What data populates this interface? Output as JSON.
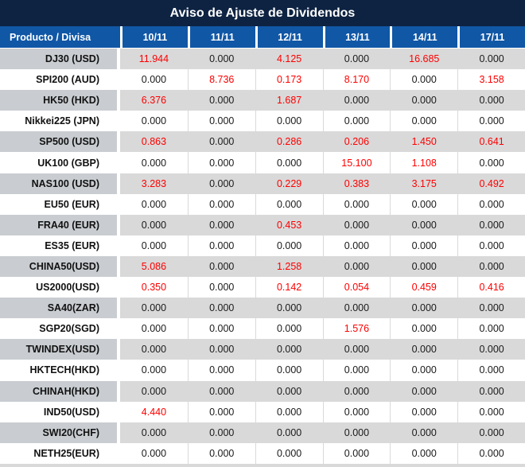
{
  "title": "Aviso de Ajuste de Dividendos",
  "colors": {
    "title_bg": "#0e2342",
    "header_bg": "#1057a6",
    "row_gray": "#d9d9d9",
    "product_gray": "#c9cdd1",
    "negative_value_red": "#fe0000",
    "value_black": "#1a1a1a"
  },
  "table": {
    "product_header": "Producto / Divisa",
    "date_headers": [
      "10/11",
      "11/11",
      "12/11",
      "13/11",
      "14/11",
      "17/11"
    ],
    "rows": [
      {
        "product": "DJ30 (USD)",
        "values": [
          "11.944",
          "0.000",
          "4.125",
          "0.000",
          "16.685",
          "0.000"
        ],
        "red": [
          true,
          false,
          true,
          false,
          true,
          false
        ]
      },
      {
        "product": "SPI200 (AUD)",
        "values": [
          "0.000",
          "8.736",
          "0.173",
          "8.170",
          "0.000",
          "3.158"
        ],
        "red": [
          false,
          true,
          true,
          true,
          false,
          true
        ]
      },
      {
        "product": "HK50 (HKD)",
        "values": [
          "6.376",
          "0.000",
          "1.687",
          "0.000",
          "0.000",
          "0.000"
        ],
        "red": [
          true,
          false,
          true,
          false,
          false,
          false
        ]
      },
      {
        "product": "Nikkei225 (JPN)",
        "values": [
          "0.000",
          "0.000",
          "0.000",
          "0.000",
          "0.000",
          "0.000"
        ],
        "red": [
          false,
          false,
          false,
          false,
          false,
          false
        ]
      },
      {
        "product": "SP500 (USD)",
        "values": [
          "0.863",
          "0.000",
          "0.286",
          "0.206",
          "1.450",
          "0.641"
        ],
        "red": [
          true,
          false,
          true,
          true,
          true,
          true
        ]
      },
      {
        "product": "UK100 (GBP)",
        "values": [
          "0.000",
          "0.000",
          "0.000",
          "15.100",
          "1.108",
          "0.000"
        ],
        "red": [
          false,
          false,
          false,
          true,
          true,
          false
        ]
      },
      {
        "product": "NAS100 (USD)",
        "values": [
          "3.283",
          "0.000",
          "0.229",
          "0.383",
          "3.175",
          "0.492"
        ],
        "red": [
          true,
          false,
          true,
          true,
          true,
          true
        ]
      },
      {
        "product": "EU50 (EUR)",
        "values": [
          "0.000",
          "0.000",
          "0.000",
          "0.000",
          "0.000",
          "0.000"
        ],
        "red": [
          false,
          false,
          false,
          false,
          false,
          false
        ]
      },
      {
        "product": "FRA40 (EUR)",
        "values": [
          "0.000",
          "0.000",
          "0.453",
          "0.000",
          "0.000",
          "0.000"
        ],
        "red": [
          false,
          false,
          true,
          false,
          false,
          false
        ]
      },
      {
        "product": "ES35 (EUR)",
        "values": [
          "0.000",
          "0.000",
          "0.000",
          "0.000",
          "0.000",
          "0.000"
        ],
        "red": [
          false,
          false,
          false,
          false,
          false,
          false
        ]
      },
      {
        "product": "CHINA50(USD)",
        "values": [
          "5.086",
          "0.000",
          "1.258",
          "0.000",
          "0.000",
          "0.000"
        ],
        "red": [
          true,
          false,
          true,
          false,
          false,
          false
        ]
      },
      {
        "product": "US2000(USD)",
        "values": [
          "0.350",
          "0.000",
          "0.142",
          "0.054",
          "0.459",
          "0.416"
        ],
        "red": [
          true,
          false,
          true,
          true,
          true,
          true
        ]
      },
      {
        "product": "SA40(ZAR)",
        "values": [
          "0.000",
          "0.000",
          "0.000",
          "0.000",
          "0.000",
          "0.000"
        ],
        "red": [
          false,
          false,
          false,
          false,
          false,
          false
        ]
      },
      {
        "product": "SGP20(SGD)",
        "values": [
          "0.000",
          "0.000",
          "0.000",
          "1.576",
          "0.000",
          "0.000"
        ],
        "red": [
          false,
          false,
          false,
          true,
          false,
          false
        ]
      },
      {
        "product": "TWINDEX(USD)",
        "values": [
          "0.000",
          "0.000",
          "0.000",
          "0.000",
          "0.000",
          "0.000"
        ],
        "red": [
          false,
          false,
          false,
          false,
          false,
          false
        ]
      },
      {
        "product": "HKTECH(HKD)",
        "values": [
          "0.000",
          "0.000",
          "0.000",
          "0.000",
          "0.000",
          "0.000"
        ],
        "red": [
          false,
          false,
          false,
          false,
          false,
          false
        ]
      },
      {
        "product": "CHINAH(HKD)",
        "values": [
          "0.000",
          "0.000",
          "0.000",
          "0.000",
          "0.000",
          "0.000"
        ],
        "red": [
          false,
          false,
          false,
          false,
          false,
          false
        ]
      },
      {
        "product": "IND50(USD)",
        "values": [
          "4.440",
          "0.000",
          "0.000",
          "0.000",
          "0.000",
          "0.000"
        ],
        "red": [
          true,
          false,
          false,
          false,
          false,
          false
        ]
      },
      {
        "product": "SWI20(CHF)",
        "values": [
          "0.000",
          "0.000",
          "0.000",
          "0.000",
          "0.000",
          "0.000"
        ],
        "red": [
          false,
          false,
          false,
          false,
          false,
          false
        ]
      },
      {
        "product": "NETH25(EUR)",
        "values": [
          "0.000",
          "0.000",
          "0.000",
          "0.000",
          "0.000",
          "0.000"
        ],
        "red": [
          false,
          false,
          false,
          false,
          false,
          false
        ]
      }
    ]
  }
}
